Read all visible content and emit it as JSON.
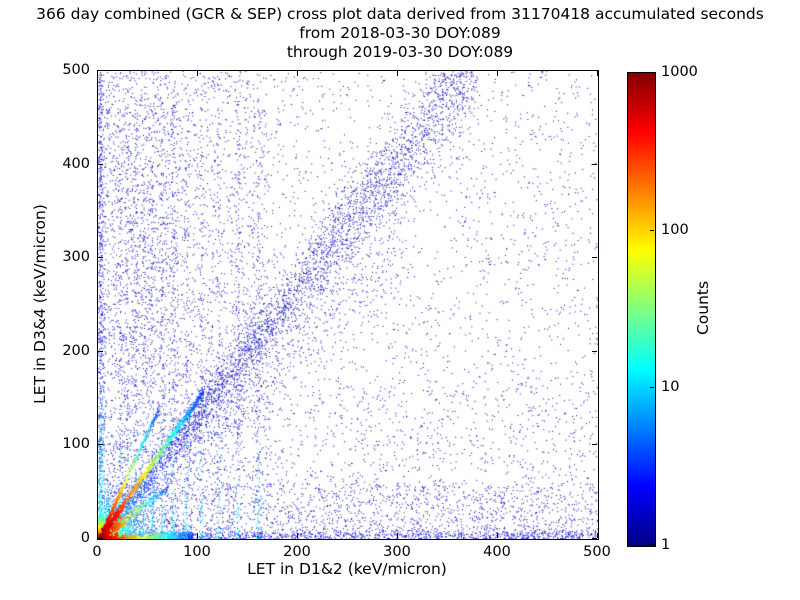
{
  "title": {
    "line1": "366 day combined (GCR & SEP) cross plot data derived from 31170418 accumulated seconds",
    "line2": "from 2018-03-30 DOY:089",
    "line3": "through 2019-03-30 DOY:089"
  },
  "chart_data": {
    "type": "heatmap",
    "title": "366 day combined (GCR & SEP) cross plot data derived from 31170418 accumulated seconds from 2018-03-30 DOY:089 through 2019-03-30 DOY:089",
    "xlabel": "LET in D1&2 (keV/micron)",
    "ylabel": "LET in D3&4 (keV/micron)",
    "xlim": [
      0,
      500
    ],
    "ylim": [
      0,
      500
    ],
    "x_ticks": [
      0,
      100,
      200,
      300,
      400,
      500
    ],
    "y_ticks": [
      0,
      100,
      200,
      300,
      400,
      500
    ],
    "grid": false,
    "colorbar": {
      "label": "Counts",
      "scale": "log",
      "min": 1,
      "max": 1000,
      "ticks": [
        1,
        10,
        100,
        1000
      ],
      "colormap": "jet",
      "gradient": [
        {
          "c": "#800000",
          "p": 0
        },
        {
          "c": "#ff0000",
          "p": 12.5
        },
        {
          "c": "#ffff00",
          "p": 37.5
        },
        {
          "c": "#00ffff",
          "p": 62.5
        },
        {
          "c": "#0000ff",
          "p": 87.5
        },
        {
          "c": "#000084",
          "p": 100
        }
      ]
    },
    "note": "2D density cross plot: hot (red/yellow) core of counts near origin with radiating streaks, a dense diagonal coincidence band of slope ~1.35, vertical low-LET stripes, a horizontal band near y=0, and sparse single counts (dark blue) across the full range.",
    "features": [
      {
        "kind": "uniform",
        "n": 3200,
        "x0": 0,
        "x1": 500,
        "y0": 0,
        "y1": 500,
        "t": 0.06
      },
      {
        "kind": "uniform",
        "n": 2200,
        "x0": 0,
        "x1": 170,
        "y0": 0,
        "y1": 500,
        "t": 0.06
      },
      {
        "kind": "uniform",
        "n": 900,
        "x0": 0,
        "x1": 80,
        "y0": 0,
        "y1": 500,
        "t": 0.07
      },
      {
        "kind": "uniform",
        "n": 1300,
        "x0": 0,
        "x1": 500,
        "y0": 0,
        "y1": 60,
        "t": 0.07
      },
      {
        "kind": "uniform",
        "n": 500,
        "x0": 170,
        "x1": 500,
        "y0": 0,
        "y1": 170,
        "t": 0.05
      },
      {
        "kind": "diagonal",
        "n": 3200,
        "slope": 1.35,
        "xmaxf": 380,
        "spread0": 5,
        "grow": 0.07,
        "pow": 0.85
      },
      {
        "kind": "diagonal",
        "n": 900,
        "slope": 1.1,
        "xmaxf": 300,
        "spread0": 8,
        "grow": 0.12,
        "pow": 0.9
      },
      {
        "kind": "vstripes",
        "xs": [
          22,
          29,
          37,
          45,
          54,
          64,
          75,
          88,
          103,
          120,
          140,
          160
        ],
        "n": 130,
        "ymaxf": 470
      },
      {
        "kind": "hband",
        "n": 1000,
        "y": 4,
        "spread": 3,
        "xmaxf": 500
      },
      {
        "kind": "vline",
        "n": 800,
        "x": 2,
        "spread": 2,
        "ymaxf": 500
      },
      {
        "kind": "core",
        "n": 4500,
        "scale": 13
      },
      {
        "kind": "ray",
        "n": 1000,
        "slope": 1.5,
        "len": 105,
        "spread": 2.5
      },
      {
        "kind": "ray",
        "n": 700,
        "slope": 0.04,
        "len": 95,
        "spread": 2.5
      },
      {
        "kind": "ray",
        "n": 350,
        "slope": 2.3,
        "len": 60,
        "spread": 2
      },
      {
        "kind": "ray",
        "n": 300,
        "slope": 0.8,
        "len": 70,
        "spread": 2.5
      }
    ],
    "colors": {
      "single_count": "#00008f",
      "max_count": "#800000",
      "axes": "#000000",
      "background": "#ffffff"
    }
  }
}
